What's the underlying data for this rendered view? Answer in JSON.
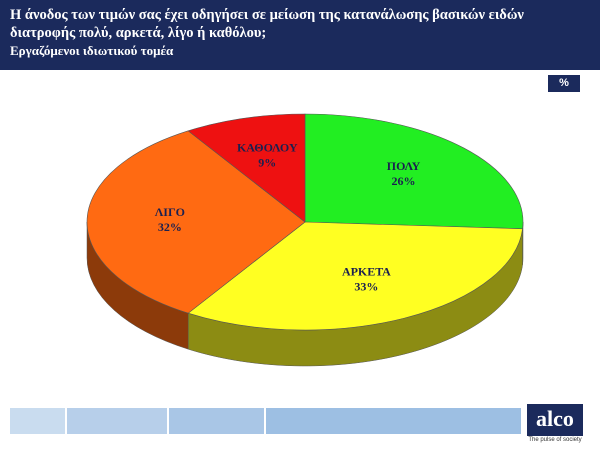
{
  "chart_data": {
    "type": "pie",
    "title": "Η άνοδος των τιμών σας έχει οδηγήσει σε μείωση της κατανάλωσης βασικών ειδών διατροφής πολύ, αρκετά, λίγο ή καθόλου;",
    "subtitle": "Εργαζόμενοι ιδιωτικού τομέα",
    "unit": "%",
    "categories": [
      "ΠΟΛΥ",
      "ΑΡΚΕΤΑ",
      "ΛΙΓΟ",
      "ΚΑΘΟΛΟΥ"
    ],
    "values": [
      26,
      33,
      32,
      9
    ],
    "value_labels": [
      "26%",
      "33%",
      "32%",
      "9%"
    ],
    "colors": [
      "#22ee22",
      "#ffff22",
      "#ff6a12",
      "#ee1111"
    ]
  },
  "footer": {
    "logo": "alco",
    "tagline": "The pulse of society"
  }
}
